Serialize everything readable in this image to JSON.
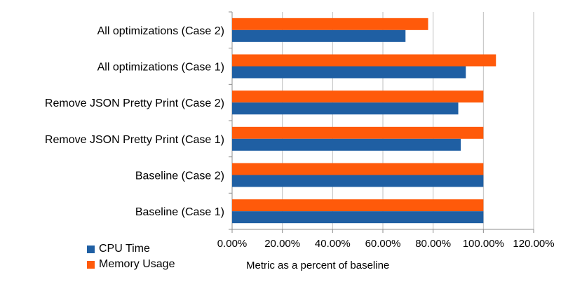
{
  "chart_data": {
    "type": "bar",
    "orientation": "horizontal",
    "categories": [
      "All optimizations (Case 2)",
      "All optimizations (Case 1)",
      "Remove JSON Pretty Print (Case 2)",
      "Remove JSON Pretty Print (Case 1)",
      "Baseline (Case 2)",
      "Baseline (Case 1)"
    ],
    "series": [
      {
        "name": "CPU Time",
        "color": "#1f5fa3",
        "values": [
          0.69,
          0.93,
          0.9,
          0.91,
          1.0,
          1.0
        ]
      },
      {
        "name": "Memory Usage",
        "color": "#ff5a0a",
        "values": [
          0.78,
          1.05,
          1.0,
          1.0,
          1.0,
          1.0
        ]
      }
    ],
    "xlim": [
      0,
      1.2
    ],
    "x_ticks": [
      "0.00%",
      "20.00%",
      "40.00%",
      "60.00%",
      "80.00%",
      "100.00%",
      "120.00%"
    ],
    "xlabel": "Metric as a percent of baseline",
    "ylabel": "",
    "title": "",
    "grid": "vertical",
    "legend_placement": "bottom-left"
  }
}
